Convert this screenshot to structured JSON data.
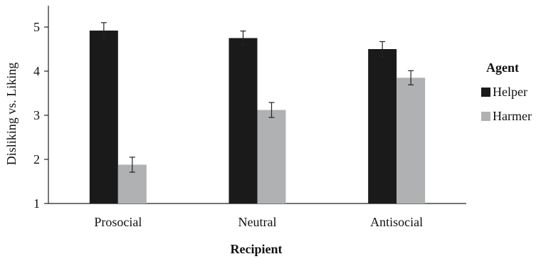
{
  "chart_data": {
    "type": "bar",
    "categories": [
      "Prosocial",
      "Neutral",
      "Antisocial"
    ],
    "series": [
      {
        "name": "Helper",
        "values": [
          4.92,
          4.75,
          4.5
        ],
        "errors": [
          0.18,
          0.16,
          0.17
        ],
        "color": "#1a1a1a"
      },
      {
        "name": "Harmer",
        "values": [
          1.88,
          3.12,
          3.85
        ],
        "errors": [
          0.17,
          0.17,
          0.16
        ],
        "color": "#b0b1b3"
      }
    ],
    "xlabel": "Recipient",
    "ylabel": "Disliking vs. Liking",
    "ylim": [
      1,
      5
    ],
    "yticks": [
      "1",
      "2",
      "3",
      "4",
      "5"
    ],
    "legend_title": "Agent",
    "legend_position": "right",
    "grid": false
  }
}
